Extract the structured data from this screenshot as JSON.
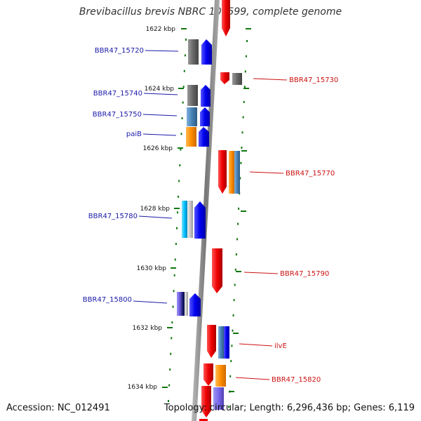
{
  "title": "Brevibacillus brevis NBRC 100599, complete genome",
  "footer": {
    "accession": "Accession: NC_012491",
    "info": "Topology: circular; Length: 6,296,436 bp; Genes: 6,119"
  },
  "ticks": [
    "1622 kbp",
    "1624 kbp",
    "1626 kbp",
    "1628 kbp",
    "1630 kbp",
    "1632 kbp",
    "1634 kbp"
  ],
  "genes_left": [
    "BBR47_15720",
    "BBR47_15740",
    "BBR47_15750",
    "paiB",
    "BBR47_15780",
    "BBR47_15800"
  ],
  "genes_right": [
    "BBR47_15730",
    "BBR47_15770",
    "BBR47_15790",
    "ilvE",
    "BBR47_15820"
  ],
  "colors": {
    "left_label": "#1a1aa8",
    "right_label": "#cc1111",
    "forward_gene": "#0000ee",
    "reverse_gene": "#ee0000",
    "hypothetical": "#666666",
    "axis": "#888888",
    "tick": "#117711"
  }
}
